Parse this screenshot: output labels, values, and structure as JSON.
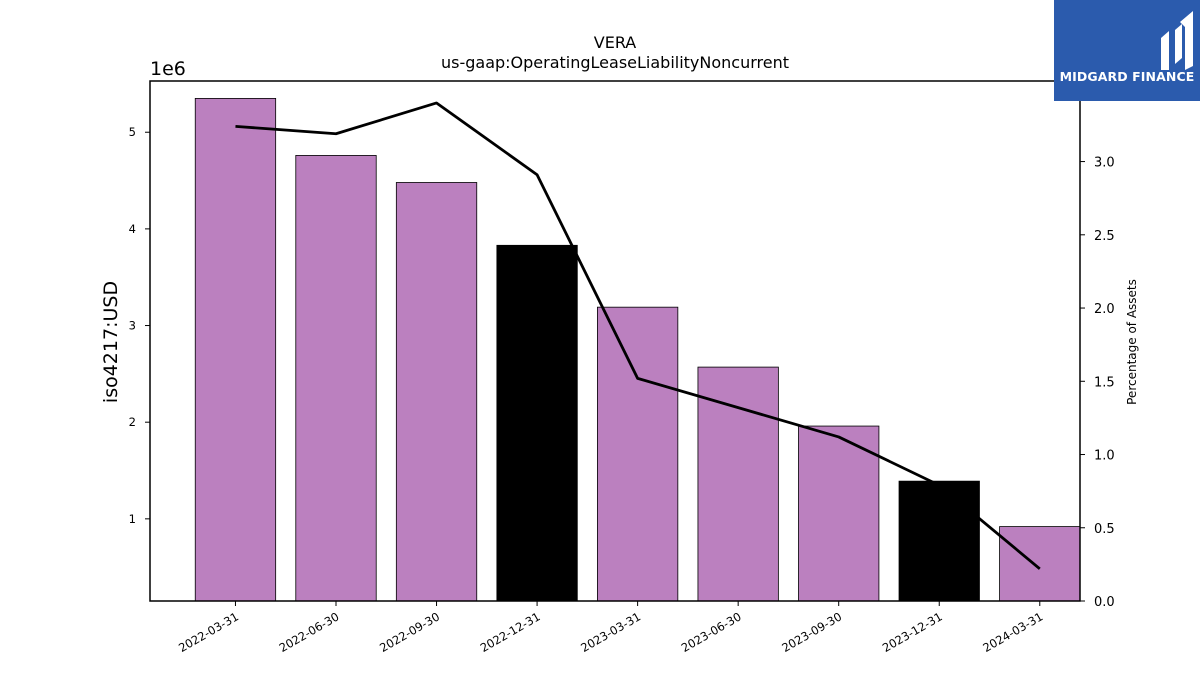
{
  "logo": {
    "text": "MIDGARD FINANCE",
    "background": "#2b5bad"
  },
  "chart_data": {
    "type": "bar",
    "title": "VERA",
    "subtitle": "us-gaap:OperatingLeaseLiabilityNoncurrent",
    "ylabel": "iso4217:USD",
    "y_offset_label": "1e6",
    "y2label": "Percentage of Assets",
    "categories": [
      "2022-03-31",
      "2022-06-30",
      "2022-09-30",
      "2022-12-31",
      "2023-03-31",
      "2023-06-30",
      "2023-09-30",
      "2023-12-31",
      "2024-03-31"
    ],
    "values": [
      5350000,
      4760000,
      4480000,
      3830000,
      3190000,
      2570000,
      1960000,
      1390000,
      920000
    ],
    "bar_colors": [
      "#bb80bf",
      "#bb80bf",
      "#bb80bf",
      "#000000",
      "#bb80bf",
      "#bb80bf",
      "#bb80bf",
      "#000000",
      "#bb80bf"
    ],
    "ylim": [
      150000,
      5530000
    ],
    "yticks": [
      1000000,
      2000000,
      3000000,
      4000000,
      5000000
    ],
    "ytick_labels": [
      "1",
      "2",
      "3",
      "4",
      "5"
    ],
    "line_series": {
      "axis": "right",
      "values": [
        3.24,
        3.19,
        3.4,
        2.91,
        1.52,
        1.32,
        1.12,
        0.79,
        0.22
      ],
      "color": "#000000"
    },
    "y2lim": [
      0,
      3.55
    ],
    "y2ticks": [
      0.0,
      0.5,
      1.0,
      1.5,
      2.0,
      2.5,
      3.0
    ],
    "y2tick_labels": [
      "0.0",
      "0.5",
      "1.0",
      "1.5",
      "2.0",
      "2.5",
      "3.0"
    ],
    "grid": false,
    "legend": "none"
  }
}
